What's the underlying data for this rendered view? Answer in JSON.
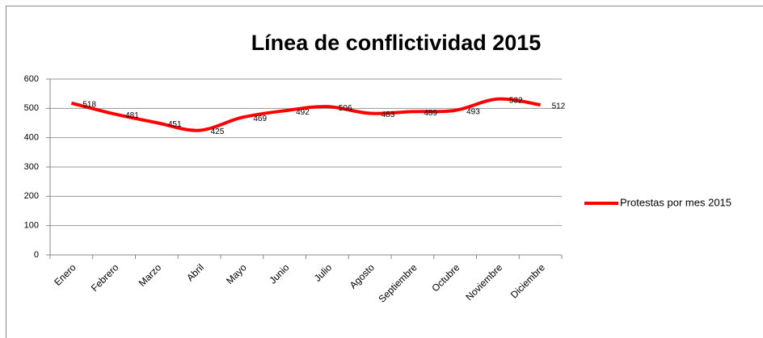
{
  "chart_data": {
    "type": "line",
    "title": "Línea de conflictividad 2015",
    "categories": [
      "Enero",
      "Febrero",
      "Marzo",
      "Abril",
      "Mayo",
      "Junio",
      "Julio",
      "Agosto",
      "Septiembre",
      "Octubre",
      "Noviembre",
      "Diciembre"
    ],
    "series": [
      {
        "name": "Protestas por mes 2015",
        "color": "#ff0000",
        "values": [
          518,
          481,
          451,
          425,
          469,
          492,
          506,
          483,
          489,
          493,
          532,
          512
        ]
      }
    ],
    "ylim": [
      0,
      600
    ],
    "yticks": [
      0,
      100,
      200,
      300,
      400,
      500,
      600
    ],
    "grid": true,
    "legend": "right",
    "data_labels": true
  }
}
